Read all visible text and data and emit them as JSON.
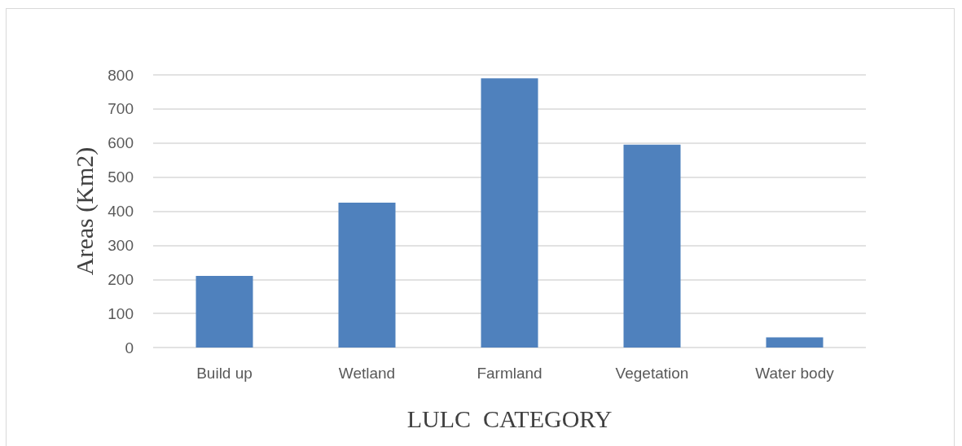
{
  "chart_data": {
    "type": "bar",
    "categories": [
      "Build up",
      "Wetland",
      "Farmland",
      "Vegetation",
      "Water body"
    ],
    "values": [
      210,
      425,
      790,
      595,
      30
    ],
    "color": "#4f81bd",
    "xlabel": "LULC  CATEGORY",
    "ylabel": "Areas (Km2)",
    "ylim": [
      0,
      800
    ],
    "yticks": [
      0,
      100,
      200,
      300,
      400,
      500,
      600,
      700,
      800
    ],
    "grid": "y"
  }
}
